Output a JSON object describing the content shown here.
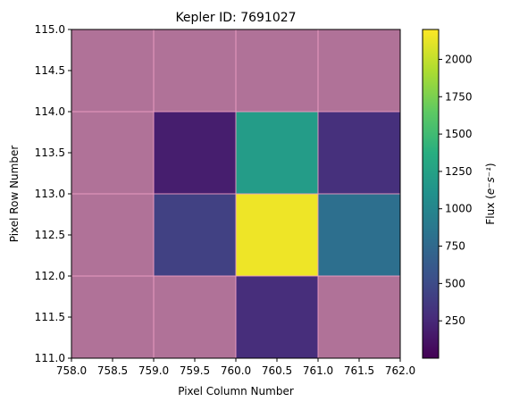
{
  "chart_data": {
    "type": "heatmap",
    "title": "Kepler ID: 7691027",
    "xlabel": "Pixel Column Number",
    "ylabel": "Pixel Row Number",
    "colorbar_label_main": "Flux (",
    "colorbar_label_math": "e⁻s⁻¹",
    "colorbar_label_close": ")",
    "colormap": "viridis",
    "xlim": [
      758.0,
      762.0
    ],
    "ylim": [
      111.0,
      115.0
    ],
    "x_ticks": [
      "758.0",
      "758.5",
      "759.0",
      "759.5",
      "760.0",
      "760.5",
      "761.0",
      "761.5",
      "762.0"
    ],
    "y_ticks": [
      "111.0",
      "111.5",
      "112.0",
      "112.5",
      "113.0",
      "113.5",
      "114.0",
      "114.5",
      "115.0"
    ],
    "colorbar_range": [
      0,
      2200
    ],
    "colorbar_ticks": [
      "250",
      "500",
      "750",
      "1000",
      "1250",
      "1500",
      "1750",
      "2000"
    ],
    "colorbar_tick_values": [
      250,
      500,
      750,
      1000,
      1250,
      1500,
      1750,
      2000
    ],
    "pixels": [
      {
        "col": 758,
        "row": 114,
        "flux": null,
        "masked": true
      },
      {
        "col": 759,
        "row": 114,
        "flux": null,
        "masked": true
      },
      {
        "col": 760,
        "row": 114,
        "flux": null,
        "masked": true
      },
      {
        "col": 761,
        "row": 114,
        "flux": null,
        "masked": true
      },
      {
        "col": 758,
        "row": 113,
        "flux": null,
        "masked": true
      },
      {
        "col": 759,
        "row": 113,
        "flux": 180,
        "masked": false
      },
      {
        "col": 760,
        "row": 113,
        "flux": 1200,
        "masked": false
      },
      {
        "col": 761,
        "row": 113,
        "flux": 300,
        "masked": false
      },
      {
        "col": 758,
        "row": 112,
        "flux": null,
        "masked": true
      },
      {
        "col": 759,
        "row": 112,
        "flux": 420,
        "masked": false
      },
      {
        "col": 760,
        "row": 112,
        "flux": 2150,
        "masked": false
      },
      {
        "col": 761,
        "row": 112,
        "flux": 800,
        "masked": false
      },
      {
        "col": 758,
        "row": 111,
        "flux": null,
        "masked": true
      },
      {
        "col": 759,
        "row": 111,
        "flux": null,
        "masked": true
      },
      {
        "col": 760,
        "row": 111,
        "flux": 280,
        "masked": false
      },
      {
        "col": 761,
        "row": 111,
        "flux": null,
        "masked": true
      }
    ],
    "mask_color": "#b07298",
    "grid_line_color": "#ef9fc4"
  }
}
